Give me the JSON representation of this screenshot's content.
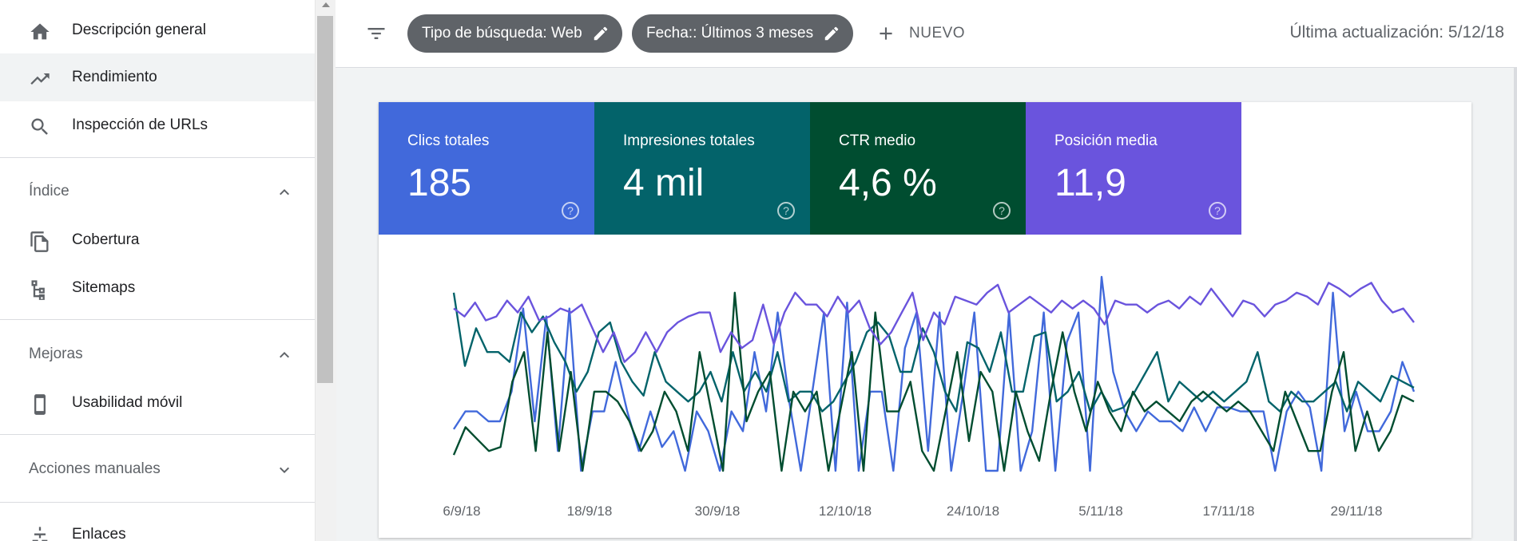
{
  "sidebar": {
    "items": [
      {
        "label": "Descripción general",
        "icon": "home-icon"
      },
      {
        "label": "Rendimiento",
        "icon": "trending-up-icon"
      },
      {
        "label": "Inspección de URLs",
        "icon": "search-icon"
      },
      {
        "label": "Cobertura",
        "icon": "coverage-icon"
      },
      {
        "label": "Sitemaps",
        "icon": "sitemap-icon"
      },
      {
        "label": "Usabilidad móvil",
        "icon": "smartphone-icon"
      },
      {
        "label": "Enlaces",
        "icon": "links-icon"
      }
    ],
    "sections": {
      "indice": "Índice",
      "mejoras": "Mejoras",
      "acciones": "Acciones manuales"
    }
  },
  "topbar": {
    "chip_search_type": "Tipo de búsqueda: Web",
    "chip_date": "Fecha:: Últimos 3 meses",
    "new_label": "NUEVO",
    "last_update": "Última actualización: 5/12/18"
  },
  "metrics": [
    {
      "label": "Clics totales",
      "value": "185",
      "color": "#4169db"
    },
    {
      "label": "Impresiones totales",
      "value": "4 mil",
      "color": "#03636a"
    },
    {
      "label": "CTR medio",
      "value": "4,6 %",
      "color": "#004d30"
    },
    {
      "label": "Posición media",
      "value": "11,9",
      "color": "#6a54dd"
    }
  ],
  "chart_data": {
    "type": "line",
    "x_tick_labels": [
      "6/9/18",
      "18/9/18",
      "30/9/18",
      "12/10/18",
      "24/10/18",
      "5/11/18",
      "17/11/18",
      "29/11/18"
    ],
    "series": [
      {
        "name": "Clics totales",
        "color": "#4169db",
        "values": [
          0.21,
          0.3,
          0.3,
          0.25,
          0.25,
          0.4,
          0.82,
          0.25,
          0.78,
          0.1,
          0.82,
          0.0,
          0.3,
          0.3,
          0.55,
          0.3,
          0.1,
          0.3,
          0.12,
          0.2,
          0.0,
          0.3,
          0.2,
          0.0,
          0.3,
          0.2,
          0.6,
          0.3,
          0.8,
          0.35,
          0.0,
          0.4,
          0.8,
          0.0,
          0.85,
          0.0,
          0.4,
          0.4,
          0.0,
          0.62,
          0.8,
          0.1,
          0.8,
          0.0,
          0.38,
          0.8,
          0.0,
          0.0,
          0.8,
          0.0,
          0.2,
          0.8,
          0.0,
          0.65,
          0.8,
          0.0,
          0.98,
          0.5,
          0.3,
          0.2,
          0.3,
          0.25,
          0.25,
          0.2,
          0.32,
          0.2,
          0.32,
          0.32,
          0.3,
          0.3,
          0.3,
          0.0,
          0.3,
          0.4,
          0.32,
          0.0,
          0.9,
          0.2,
          0.4,
          0.2,
          0.2,
          0.3,
          0.55,
          0.4
        ]
      },
      {
        "name": "Impresiones totales",
        "color": "#03636a",
        "values": [
          0.9,
          0.53,
          0.72,
          0.6,
          0.6,
          0.55,
          0.8,
          0.7,
          0.78,
          0.65,
          0.55,
          0.4,
          0.5,
          0.7,
          0.75,
          0.55,
          0.45,
          0.38,
          0.6,
          0.45,
          0.4,
          0.35,
          0.4,
          0.5,
          0.35,
          0.6,
          0.4,
          0.5,
          0.4,
          0.6,
          0.35,
          0.4,
          0.4,
          0.3,
          0.35,
          0.45,
          0.55,
          0.7,
          0.75,
          0.68,
          0.5,
          0.5,
          0.72,
          0.6,
          0.4,
          0.3,
          0.65,
          0.62,
          0.5,
          0.7,
          0.4,
          0.4,
          0.68,
          0.7,
          0.35,
          0.4,
          0.5,
          0.3,
          0.4,
          0.3,
          0.32,
          0.4,
          0.5,
          0.6,
          0.35,
          0.45,
          0.4,
          0.35,
          0.4,
          0.35,
          0.4,
          0.45,
          0.6,
          0.35,
          0.3,
          0.4,
          0.35,
          0.35,
          0.4,
          0.45,
          0.3,
          0.45,
          0.4,
          0.35,
          0.48,
          0.45,
          0.42
        ]
      },
      {
        "name": "CTR medio",
        "color": "#004d30",
        "values": [
          0.08,
          0.22,
          0.16,
          0.1,
          0.12,
          0.45,
          0.6,
          0.1,
          0.7,
          0.1,
          0.5,
          0.0,
          0.4,
          0.4,
          0.35,
          0.25,
          0.1,
          0.2,
          0.4,
          0.3,
          0.1,
          0.6,
          0.3,
          0.0,
          0.9,
          0.25,
          0.4,
          0.5,
          0.0,
          0.4,
          0.3,
          0.4,
          0.0,
          0.3,
          0.6,
          0.0,
          0.8,
          0.3,
          0.3,
          0.45,
          0.1,
          0.0,
          0.3,
          0.6,
          0.15,
          0.5,
          0.4,
          0.0,
          0.4,
          0.2,
          0.05,
          0.4,
          0.7,
          0.4,
          0.2,
          0.45,
          0.3,
          0.2,
          0.4,
          0.3,
          0.35,
          0.3,
          0.25,
          0.35,
          0.4,
          0.35,
          0.3,
          0.35,
          0.3,
          0.2,
          0.1,
          0.4,
          0.25,
          0.1,
          0.1,
          0.4,
          0.6,
          0.1,
          0.3,
          0.1,
          0.2,
          0.38,
          0.35
        ]
      },
      {
        "name": "Posición media",
        "color": "#6a54dd",
        "values": [
          0.82,
          0.78,
          0.85,
          0.76,
          0.78,
          0.86,
          0.8,
          0.88,
          0.76,
          0.78,
          0.82,
          0.8,
          0.84,
          0.72,
          0.6,
          0.7,
          0.55,
          0.6,
          0.7,
          0.6,
          0.7,
          0.75,
          0.78,
          0.8,
          0.8,
          0.6,
          0.7,
          0.62,
          0.66,
          0.84,
          0.64,
          0.8,
          0.9,
          0.84,
          0.84,
          0.78,
          0.88,
          0.8,
          0.86,
          0.72,
          0.64,
          0.7,
          0.8,
          0.9,
          0.66,
          0.8,
          0.74,
          0.88,
          0.86,
          0.84,
          0.9,
          0.94,
          0.8,
          0.84,
          0.88,
          0.84,
          0.8,
          0.86,
          0.82,
          0.86,
          0.82,
          0.74,
          0.86,
          0.84,
          0.84,
          0.8,
          0.84,
          0.86,
          0.82,
          0.88,
          0.84,
          0.92,
          0.85,
          0.78,
          0.86,
          0.84,
          0.78,
          0.84,
          0.86,
          0.9,
          0.88,
          0.84,
          0.95,
          0.92,
          0.88,
          0.92,
          0.95,
          0.86,
          0.8,
          0.82,
          0.75
        ]
      }
    ]
  }
}
